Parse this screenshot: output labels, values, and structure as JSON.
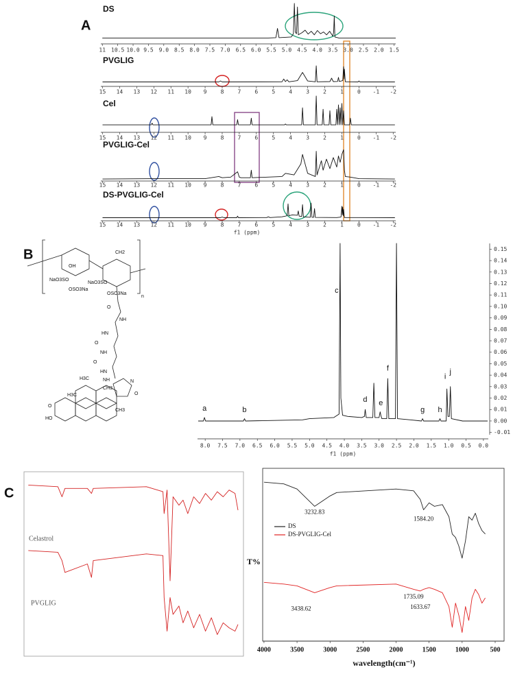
{
  "figure": {
    "panel_labels": [
      "A",
      "B",
      "C"
    ],
    "structure_labels": [
      "NaO3SO",
      "OSO3Na",
      "OH",
      "CH2",
      "NaO3SO",
      "OSO3Na",
      "n",
      "O",
      "NH",
      "HN",
      "O",
      "NH",
      "O",
      "HN",
      "H3C",
      "NH",
      "N",
      "O",
      "CH3",
      "H3C",
      "CH3",
      "O",
      "HO"
    ]
  },
  "chart_data": [
    {
      "type": "line",
      "title": "DS",
      "xlim": [
        11.05,
        1.45
      ],
      "ylim": [
        0,
        100
      ],
      "xticks": [
        11,
        10.5,
        {
          "value": 10,
          "label": "10.0"
        },
        9.5,
        {
          "value": 9,
          "label": "9.0"
        },
        8.5,
        {
          "value": 8,
          "label": "8.0"
        },
        7.5,
        {
          "value": 7,
          "label": "7.0"
        },
        6.5,
        {
          "value": 6,
          "label": "6.0"
        },
        5.5,
        {
          "value": 5,
          "label": "5.0"
        },
        4.5,
        {
          "value": 4,
          "label": "4.0"
        },
        3.5,
        {
          "value": 3,
          "label": "3.0"
        },
        2.5,
        {
          "value": 2,
          "label": "2.0"
        },
        1.5
      ],
      "x": [
        11,
        5.6,
        5.35,
        5.3,
        5.25,
        4.85,
        4.78,
        4.75,
        4.72,
        4.68,
        4.65,
        4.62,
        4.5,
        4.4,
        4.3,
        4.2,
        4.1,
        4.0,
        3.9,
        3.8,
        3.7,
        3.6,
        3.5,
        3.47,
        3.45,
        3.43,
        3.3,
        1.45
      ],
      "series": [
        {
          "color": "#111111",
          "values": [
            3,
            3,
            4,
            30,
            4,
            6,
            15,
            100,
            20,
            15,
            90,
            12,
            18,
            25,
            14,
            22,
            12,
            24,
            15,
            20,
            12,
            22,
            8,
            20,
            65,
            6,
            3,
            3
          ]
        }
      ]
    },
    {
      "type": "line",
      "title": "PVGLIG",
      "xlim": [
        15.1,
        -2.15
      ],
      "ylim": [
        0,
        100
      ],
      "xticks": [
        15,
        14,
        13,
        12,
        11,
        10,
        9,
        8,
        7,
        6,
        5,
        4,
        3,
        2,
        1,
        0,
        -1,
        -2
      ],
      "x": [
        15,
        8.2,
        8.1,
        8.0,
        4.5,
        4.4,
        4.3,
        4.2,
        4.1,
        3.6,
        3.3,
        3.0,
        2.55,
        2.5,
        2.45,
        1.7,
        1.6,
        1.5,
        1.25,
        1.2,
        1.15,
        0.95,
        0.9,
        0.87,
        0.85,
        0.8,
        0.05,
        0,
        -0.05,
        -2.1
      ],
      "series": [
        {
          "color": "#111111",
          "values": [
            2,
            2,
            8,
            2,
            3,
            20,
            4,
            15,
            3,
            10,
            60,
            8,
            3,
            100,
            3,
            4,
            25,
            4,
            5,
            30,
            5,
            10,
            95,
            20,
            80,
            3,
            2,
            8,
            2,
            2
          ]
        }
      ]
    },
    {
      "type": "line",
      "title": "Cel",
      "xlim": [
        15.1,
        -2.15
      ],
      "ylim": [
        0,
        100
      ],
      "xticks": [
        15,
        14,
        13,
        12,
        11,
        10,
        9,
        8,
        7,
        6,
        5,
        4,
        3,
        2,
        1,
        0,
        -1,
        -2
      ],
      "x": [
        15,
        12.15,
        12.1,
        12.05,
        8.65,
        8.6,
        8.55,
        7.15,
        7.1,
        7.05,
        6.35,
        6.3,
        6.25,
        4.35,
        4.3,
        4.25,
        3.35,
        3.3,
        3.25,
        2.55,
        2.5,
        2.45,
        2.15,
        2.1,
        2.05,
        1.75,
        1.7,
        1.65,
        1.35,
        1.3,
        1.25,
        1.2,
        1.15,
        1.1,
        1.05,
        1.0,
        0.95,
        0.9,
        0.85,
        0.55,
        0.5,
        0.45,
        -2.1
      ],
      "series": [
        {
          "color": "#111111",
          "values": [
            2,
            2,
            8,
            2,
            2,
            30,
            2,
            2,
            20,
            2,
            2,
            25,
            2,
            2,
            5,
            2,
            2,
            60,
            2,
            2,
            100,
            2,
            2,
            55,
            2,
            2,
            50,
            2,
            2,
            55,
            2,
            70,
            2,
            60,
            2,
            75,
            2,
            50,
            2,
            2,
            25,
            2,
            2
          ]
        }
      ]
    },
    {
      "type": "line",
      "title": "PVGLIG-Cel",
      "xlim": [
        15.1,
        -2.15
      ],
      "ylim": [
        0,
        100
      ],
      "xticks": [
        15,
        14,
        13,
        12,
        11,
        10,
        9,
        8,
        7,
        6,
        5,
        4,
        3,
        2,
        1,
        0,
        -1,
        -2
      ],
      "x": [
        15,
        12.1,
        9,
        8.2,
        8.0,
        7.5,
        7.1,
        7.0,
        6.9,
        6.35,
        6.3,
        6.25,
        4.5,
        4.3,
        3.8,
        3.4,
        3.3,
        3.0,
        2.55,
        2.5,
        2.45,
        2.2,
        2.1,
        1.9,
        1.7,
        1.5,
        1.3,
        1.2,
        1.1,
        1.0,
        0.9,
        0.85,
        0.8,
        0.5,
        0,
        -2.1
      ],
      "series": [
        {
          "color": "#111111",
          "values": [
            2,
            3,
            3,
            10,
            6,
            8,
            25,
            8,
            6,
            6,
            30,
            6,
            10,
            20,
            15,
            50,
            80,
            20,
            10,
            90,
            15,
            60,
            30,
            65,
            35,
            70,
            40,
            75,
            55,
            80,
            95,
            30,
            10,
            8,
            3,
            2
          ]
        }
      ]
    },
    {
      "type": "line",
      "title": "DS-PVGLIG-Cel",
      "xlabel": "f1 (ppm)",
      "xlim": [
        15.1,
        -2.15
      ],
      "ylim": [
        0,
        100
      ],
      "xticks": [
        15,
        14,
        13,
        12,
        11,
        10,
        9,
        8,
        7,
        6,
        5,
        4,
        3,
        2,
        1,
        0,
        -1,
        -2
      ],
      "x": [
        15,
        8.1,
        8.0,
        7.9,
        7.15,
        7.1,
        7.05,
        5.4,
        5.3,
        5.2,
        4.5,
        4.3,
        4.2,
        4.15,
        4.1,
        3.9,
        3.6,
        3.55,
        3.5,
        3.35,
        3.3,
        3.25,
        2.85,
        2.8,
        2.75,
        2.65,
        2.6,
        2.55,
        1.3,
        1.05,
        1.0,
        0.97,
        0.95,
        0.92,
        0.9,
        0.85,
        0,
        -2.1
      ],
      "series": [
        {
          "color": "#111111",
          "values": [
            2,
            2,
            6,
            2,
            2,
            12,
            2,
            3,
            8,
            3,
            8,
            12,
            15,
            90,
            15,
            20,
            18,
            45,
            12,
            10,
            85,
            8,
            5,
            95,
            5,
            5,
            60,
            4,
            3,
            6,
            75,
            20,
            70,
            15,
            55,
            3,
            3,
            2
          ]
        }
      ]
    },
    {
      "type": "line",
      "xlabel": "f1 (ppm)",
      "xlim": [
        8.22,
        -0.14
      ],
      "ylim": [
        -0.012,
        0.155
      ],
      "xticks": [
        {
          "value": 8,
          "label": "8.0"
        },
        7.5,
        {
          "value": 7,
          "label": "7.0"
        },
        6.5,
        {
          "value": 6,
          "label": "6.0"
        },
        5.5,
        {
          "value": 5,
          "label": "5.0"
        },
        4.5,
        {
          "value": 4,
          "label": "4.0"
        },
        3.5,
        {
          "value": 3,
          "label": "3.0"
        },
        2.5,
        {
          "value": 2,
          "label": "2.0"
        },
        1.5,
        {
          "value": 1,
          "label": "1.0"
        },
        0.5,
        {
          "value": 0,
          "label": "0.0"
        }
      ],
      "yticks": [
        -0.01,
        {
          "value": 0,
          "label": "0.00"
        },
        0.01,
        0.02,
        0.03,
        0.04,
        0.05,
        0.06,
        0.07,
        0.08,
        0.09,
        {
          "value": 0.1,
          "label": "0.10"
        },
        0.11,
        0.12,
        0.13,
        0.14,
        0.15
      ],
      "x": [
        8.2,
        8.05,
        8.02,
        7.99,
        6.9,
        6.87,
        6.84,
        5.2,
        5.0,
        4.3,
        4.15,
        4.12,
        4.1,
        4.05,
        3.9,
        3.5,
        3.42,
        3.4,
        3.37,
        3.18,
        3.15,
        3.12,
        3.0,
        2.97,
        2.95,
        2.92,
        2.78,
        2.75,
        2.72,
        2.53,
        2.5,
        2.47,
        2.1,
        1.78,
        1.75,
        1.72,
        1.28,
        1.25,
        1.22,
        1.07,
        1.05,
        1.02,
        0.98,
        0.95,
        0.92,
        0.6,
        -0.12
      ],
      "series": [
        {
          "color": "#111111",
          "values": [
            0,
            0,
            0.003,
            0,
            0,
            0.002,
            0,
            0.001,
            0.002,
            0.003,
            0.006,
            0.155,
            0.02,
            0.005,
            0.004,
            0.003,
            0.004,
            0.01,
            0.003,
            0.003,
            0.033,
            0.003,
            0.003,
            0.008,
            0.005,
            0.002,
            0.002,
            0.037,
            0.002,
            0.002,
            0.155,
            0.002,
            0.001,
            0,
            0.002,
            0,
            0,
            0.002,
            0,
            0,
            0.028,
            0.004,
            0.004,
            0.03,
            0.002,
            0,
            0
          ]
        }
      ],
      "annotations": [
        {
          "label": "a",
          "x": 8.02,
          "y": 0.007
        },
        {
          "label": "b",
          "x": 6.87,
          "y": 0.006
        },
        {
          "label": "c",
          "x": 4.22,
          "y": 0.11
        },
        {
          "label": "d",
          "x": 3.4,
          "y": 0.015
        },
        {
          "label": "e",
          "x": 2.95,
          "y": 0.012
        },
        {
          "label": "f",
          "x": 2.75,
          "y": 0.042
        },
        {
          "label": "g",
          "x": 1.75,
          "y": 0.006
        },
        {
          "label": "h",
          "x": 1.25,
          "y": 0.006
        },
        {
          "label": "i",
          "x": 1.1,
          "y": 0.035
        },
        {
          "label": "j",
          "x": 0.95,
          "y": 0.039
        }
      ]
    },
    {
      "type": "line",
      "xlim": [
        4050,
        380
      ],
      "ylim": [
        0,
        100
      ],
      "x": [
        4000,
        3500,
        3430,
        3380,
        3000,
        2930,
        2900,
        2000,
        1720,
        1700,
        1650,
        1600,
        1550,
        1450,
        1380,
        1300,
        1200,
        1100,
        1000,
        900,
        800,
        700,
        600,
        500,
        450
      ],
      "series": [
        {
          "name": "Celastrol",
          "color": "#d42020",
          "values": [
            97,
            96,
            90,
            95,
            95,
            92,
            95,
            96,
            93,
            80,
            94,
            40,
            90,
            85,
            88,
            80,
            90,
            86,
            92,
            88,
            93,
            90,
            94,
            92,
            82
          ]
        },
        {
          "name": "PVGLIG",
          "color": "#d42020",
          "values": [
            58,
            57,
            52,
            45,
            50,
            42,
            52,
            56,
            55,
            30,
            10,
            30,
            20,
            25,
            15,
            22,
            12,
            20,
            10,
            18,
            8,
            15,
            12,
            10,
            14
          ]
        }
      ]
    },
    {
      "type": "line",
      "xlabel": "wavelength(cm⁻¹)",
      "ylabel": "T%",
      "xlim": [
        4020,
        365
      ],
      "ylim": [
        0,
        100
      ],
      "xticks": [
        4000,
        3500,
        3000,
        2500,
        2000,
        1500,
        1000,
        500
      ],
      "x": [
        4000,
        3700,
        3500,
        3232.83,
        3000,
        2900,
        2000,
        1735.09,
        1633.67,
        1584.2,
        1500,
        1420,
        1300,
        1200,
        1150,
        1100,
        1050,
        1000,
        950,
        900,
        850,
        800,
        750,
        700,
        650
      ],
      "series": [
        {
          "name": "DS",
          "color": "#222222",
          "values": [
            92,
            91,
            88,
            78,
            84,
            86,
            88,
            87,
            82,
            76,
            80,
            78,
            79,
            72,
            62,
            60,
            55,
            48,
            58,
            72,
            70,
            74,
            68,
            64,
            62
          ]
        },
        {
          "name": "DS-PVGLIG-Cel",
          "color": "#e02020",
          "values": [
            34,
            33,
            32,
            28,
            31,
            32,
            33,
            30,
            29,
            30,
            31,
            30,
            28,
            20,
            8,
            22,
            15,
            5,
            20,
            12,
            25,
            30,
            27,
            22,
            25
          ]
        }
      ],
      "annotations": [
        {
          "label": "3232.83",
          "x": 3232.83,
          "y": 72
        },
        {
          "label": "1584.20",
          "x": 1584.2,
          "y": 68
        },
        {
          "label": "3438.62",
          "x": 3438.62,
          "y": 16
        },
        {
          "label": "1735.09",
          "x": 1735.09,
          "y": 23
        },
        {
          "label": "1633.67",
          "x": 1633.67,
          "y": 17
        }
      ]
    }
  ]
}
